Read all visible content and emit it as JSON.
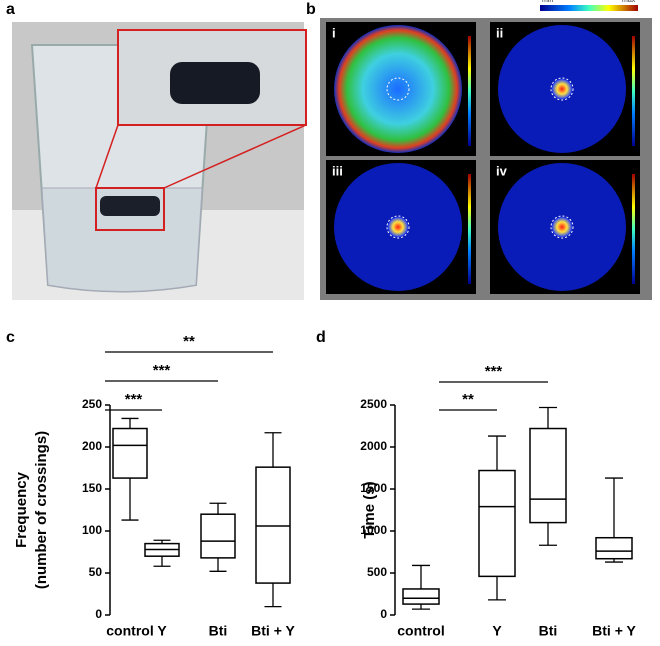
{
  "panels": [
    "a",
    "b",
    "c",
    "d"
  ],
  "heatmaps": {
    "colorbar": [
      "min",
      "max"
    ],
    "labels": [
      "i",
      "ii",
      "iii",
      "iv"
    ]
  },
  "chart_data": [
    {
      "type": "box",
      "ylabel": [
        "Frequency",
        "(number of crossings)"
      ],
      "categories": [
        "control",
        "Y",
        "Bti",
        "Bti + Y"
      ],
      "boxes": [
        {
          "min": 113,
          "q1": 163,
          "median": 202,
          "q3": 222,
          "max": 234
        },
        {
          "min": 58,
          "q1": 70,
          "median": 78,
          "q3": 85,
          "max": 89
        },
        {
          "min": 52,
          "q1": 68,
          "median": 88,
          "q3": 120,
          "max": 133
        },
        {
          "min": 10,
          "q1": 38,
          "median": 106,
          "q3": 176,
          "max": 217
        }
      ],
      "significance": [
        null,
        "***",
        "***",
        "**"
      ],
      "ylim": [
        0,
        250
      ],
      "yticks": [
        0,
        50,
        100,
        150,
        200,
        250
      ],
      "color": "#000000"
    },
    {
      "type": "box",
      "ylabel": [
        "Time (s)"
      ],
      "categories": [
        "control",
        "Y",
        "Bti",
        "Bti + Y"
      ],
      "boxes": [
        {
          "min": 70,
          "q1": 130,
          "median": 200,
          "q3": 310,
          "max": 590
        },
        {
          "min": 180,
          "q1": 460,
          "median": 1290,
          "q3": 1720,
          "max": 2130
        },
        {
          "min": 830,
          "q1": 1100,
          "median": 1380,
          "q3": 2220,
          "max": 2470
        },
        {
          "min": 630,
          "q1": 670,
          "median": 760,
          "q3": 920,
          "max": 1630
        }
      ],
      "significance": [
        null,
        "**",
        "***",
        null
      ],
      "ylim": [
        0,
        2500
      ],
      "yticks": [
        0,
        500,
        1000,
        1500,
        2000,
        2500
      ],
      "color": "#000000"
    }
  ]
}
